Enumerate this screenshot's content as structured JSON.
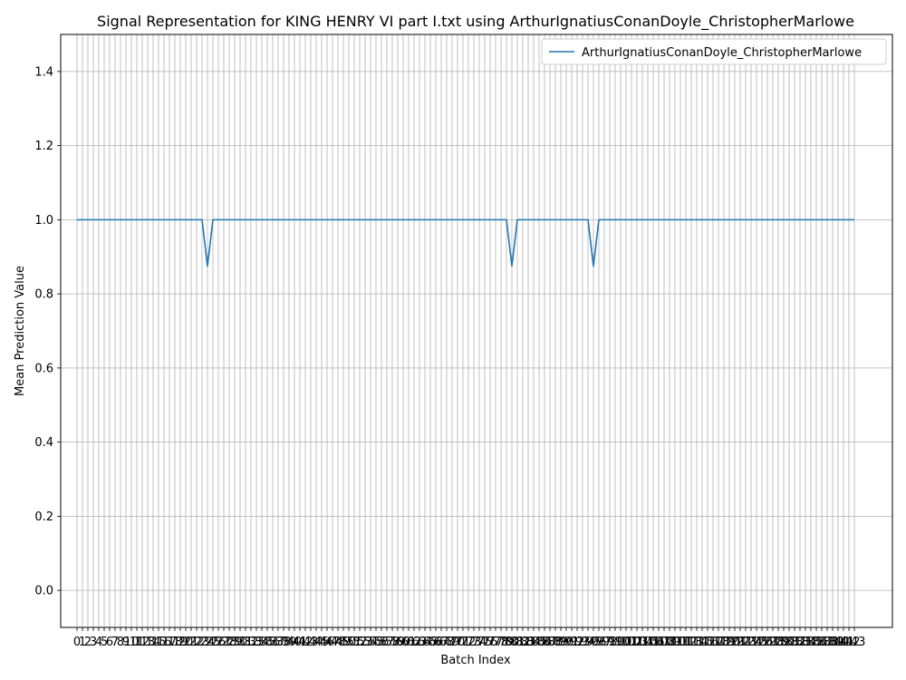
{
  "chart_data": {
    "type": "line",
    "title": "Signal Representation for KING HENRY VI part I.txt using ArthurIgnatiusConanDoyle_ChristopherMarlowe",
    "xlabel": "Batch Index",
    "ylabel": "Mean Prediction Value",
    "xlim": [
      -3,
      150
    ],
    "ylim": [
      -0.1,
      1.5
    ],
    "x_start": 0,
    "x_end": 143,
    "yticks": [
      0.0,
      0.2,
      0.4,
      0.6,
      0.8,
      1.0,
      1.2,
      1.4
    ],
    "grid": true,
    "legend_position": "top-right",
    "series": [
      {
        "name": "ArthurIgnatiusConanDoyle_ChristopherMarlowe",
        "color": "#1f77b4",
        "baseline": 1.0,
        "dips": [
          {
            "x": 24,
            "y": 0.875
          },
          {
            "x": 80,
            "y": 0.875
          },
          {
            "x": 95,
            "y": 0.875
          }
        ]
      }
    ]
  }
}
